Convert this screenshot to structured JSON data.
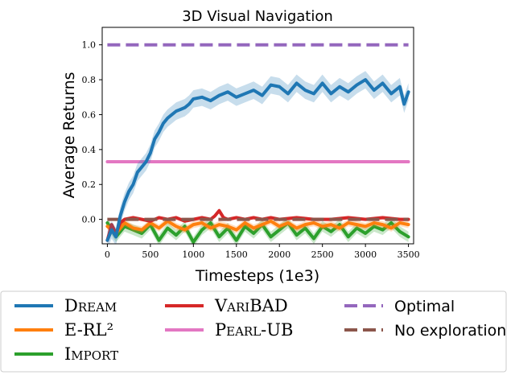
{
  "chart_data": {
    "type": "line",
    "title": "3D Visual Navigation",
    "xlabel": "Timesteps (1e3)",
    "ylabel": "Average Returns",
    "xlim": [
      -60,
      3560
    ],
    "ylim": [
      -0.14,
      1.1
    ],
    "xticks": [
      {
        "value": 0,
        "label": "0"
      },
      {
        "value": 500,
        "label": "500"
      },
      {
        "value": 1000,
        "label": "1000"
      },
      {
        "value": 1500,
        "label": "1500"
      },
      {
        "value": 2000,
        "label": "2000"
      },
      {
        "value": 2500,
        "label": "2500"
      },
      {
        "value": 3000,
        "label": "3000"
      },
      {
        "value": 3500,
        "label": "3500"
      }
    ],
    "yticks": [
      {
        "value": 0.0,
        "label": "0.0"
      },
      {
        "value": 0.2,
        "label": "0.2"
      },
      {
        "value": 0.4,
        "label": "0.4"
      },
      {
        "value": 0.6,
        "label": "0.6"
      },
      {
        "value": 0.8,
        "label": "0.8"
      },
      {
        "value": 1.0,
        "label": "1.0"
      }
    ],
    "grid": false,
    "legend_position": "bottom",
    "series": [
      {
        "name": "Dream",
        "name_style": "smallcaps",
        "color": "#1f77b4",
        "dash": false,
        "band": 0.05,
        "x": [
          0,
          50,
          100,
          150,
          200,
          250,
          300,
          350,
          400,
          450,
          500,
          550,
          600,
          650,
          700,
          750,
          800,
          850,
          900,
          950,
          1000,
          1100,
          1200,
          1300,
          1400,
          1500,
          1600,
          1700,
          1800,
          1900,
          2000,
          2100,
          2200,
          2300,
          2400,
          2500,
          2600,
          2700,
          2800,
          2900,
          3000,
          3100,
          3200,
          3300,
          3400,
          3450,
          3500
        ],
        "y": [
          -0.12,
          -0.06,
          -0.1,
          0.02,
          0.1,
          0.16,
          0.2,
          0.27,
          0.3,
          0.33,
          0.38,
          0.46,
          0.5,
          0.55,
          0.58,
          0.6,
          0.62,
          0.63,
          0.64,
          0.66,
          0.69,
          0.7,
          0.68,
          0.71,
          0.73,
          0.7,
          0.72,
          0.74,
          0.71,
          0.77,
          0.76,
          0.72,
          0.78,
          0.74,
          0.72,
          0.78,
          0.72,
          0.76,
          0.73,
          0.77,
          0.8,
          0.74,
          0.78,
          0.72,
          0.76,
          0.66,
          0.73
        ]
      },
      {
        "name": "E-RL²",
        "name_style": "plain",
        "color": "#ff7f0e",
        "dash": false,
        "band": 0.02,
        "x": [
          0,
          100,
          200,
          300,
          400,
          500,
          600,
          700,
          800,
          900,
          1000,
          1100,
          1200,
          1300,
          1400,
          1500,
          1600,
          1700,
          1800,
          1900,
          2000,
          2100,
          2200,
          2300,
          2400,
          2500,
          2600,
          2700,
          2800,
          2900,
          3000,
          3100,
          3200,
          3300,
          3400,
          3500
        ],
        "y": [
          -0.04,
          -0.08,
          -0.02,
          -0.05,
          -0.06,
          -0.02,
          -0.05,
          -0.01,
          -0.04,
          -0.06,
          -0.03,
          -0.02,
          -0.05,
          -0.03,
          -0.04,
          -0.06,
          -0.02,
          -0.05,
          -0.03,
          -0.01,
          -0.04,
          -0.02,
          -0.05,
          -0.03,
          -0.02,
          -0.04,
          -0.03,
          -0.05,
          -0.02,
          -0.03,
          -0.04,
          -0.02,
          -0.03,
          -0.05,
          -0.02,
          -0.03
        ]
      },
      {
        "name": "Import",
        "name_style": "smallcaps",
        "color": "#2ca02c",
        "dash": false,
        "band": 0.03,
        "x": [
          0,
          100,
          200,
          300,
          400,
          500,
          600,
          700,
          800,
          900,
          1000,
          1100,
          1200,
          1300,
          1400,
          1500,
          1600,
          1700,
          1800,
          1900,
          2000,
          2100,
          2200,
          2300,
          2400,
          2500,
          2600,
          2700,
          2800,
          2900,
          3000,
          3100,
          3200,
          3300,
          3400,
          3500
        ],
        "y": [
          -0.02,
          -0.1,
          -0.04,
          -0.06,
          -0.08,
          -0.03,
          -0.12,
          -0.05,
          -0.09,
          -0.04,
          -0.13,
          -0.06,
          -0.02,
          -0.1,
          -0.05,
          -0.12,
          -0.04,
          -0.08,
          -0.03,
          -0.1,
          -0.06,
          -0.02,
          -0.09,
          -0.05,
          -0.11,
          -0.04,
          -0.07,
          -0.03,
          -0.1,
          -0.05,
          -0.08,
          -0.04,
          -0.06,
          -0.02,
          -0.07,
          -0.1
        ]
      },
      {
        "name": "VariBAD",
        "name_style": "smallcaps",
        "color": "#d62728",
        "dash": false,
        "band": 0.01,
        "x": [
          0,
          50,
          100,
          150,
          200,
          300,
          400,
          500,
          600,
          700,
          800,
          900,
          1000,
          1100,
          1200,
          1250,
          1300,
          1350,
          1400,
          1500,
          1600,
          1700,
          1800,
          1900,
          2000,
          2200,
          2400,
          2600,
          2800,
          3000,
          3200,
          3400,
          3500
        ],
        "y": [
          -0.12,
          -0.03,
          -0.08,
          -0.02,
          0.0,
          0.01,
          0.0,
          -0.01,
          0.01,
          0.0,
          0.01,
          -0.01,
          0.0,
          0.01,
          0.0,
          0.02,
          0.05,
          0.01,
          0.0,
          0.01,
          0.0,
          0.01,
          0.0,
          0.01,
          0.0,
          0.01,
          0.0,
          0.0,
          0.01,
          0.0,
          0.01,
          0.0,
          0.0
        ]
      },
      {
        "name": "Pearl-UB",
        "name_style": "smallcaps",
        "color": "#e377c2",
        "dash": false,
        "band": 0,
        "x": [
          0,
          3500
        ],
        "y": [
          0.33,
          0.33
        ]
      },
      {
        "name": "Optimal",
        "name_style": "sans",
        "color": "#9467bd",
        "dash": true,
        "band": 0,
        "x": [
          0,
          3500
        ],
        "y": [
          1.0,
          1.0
        ]
      },
      {
        "name": "No exploration",
        "name_style": "sans",
        "color": "#8c564b",
        "dash": true,
        "band": 0,
        "x": [
          0,
          3500
        ],
        "y": [
          0.0,
          0.0
        ]
      }
    ]
  }
}
